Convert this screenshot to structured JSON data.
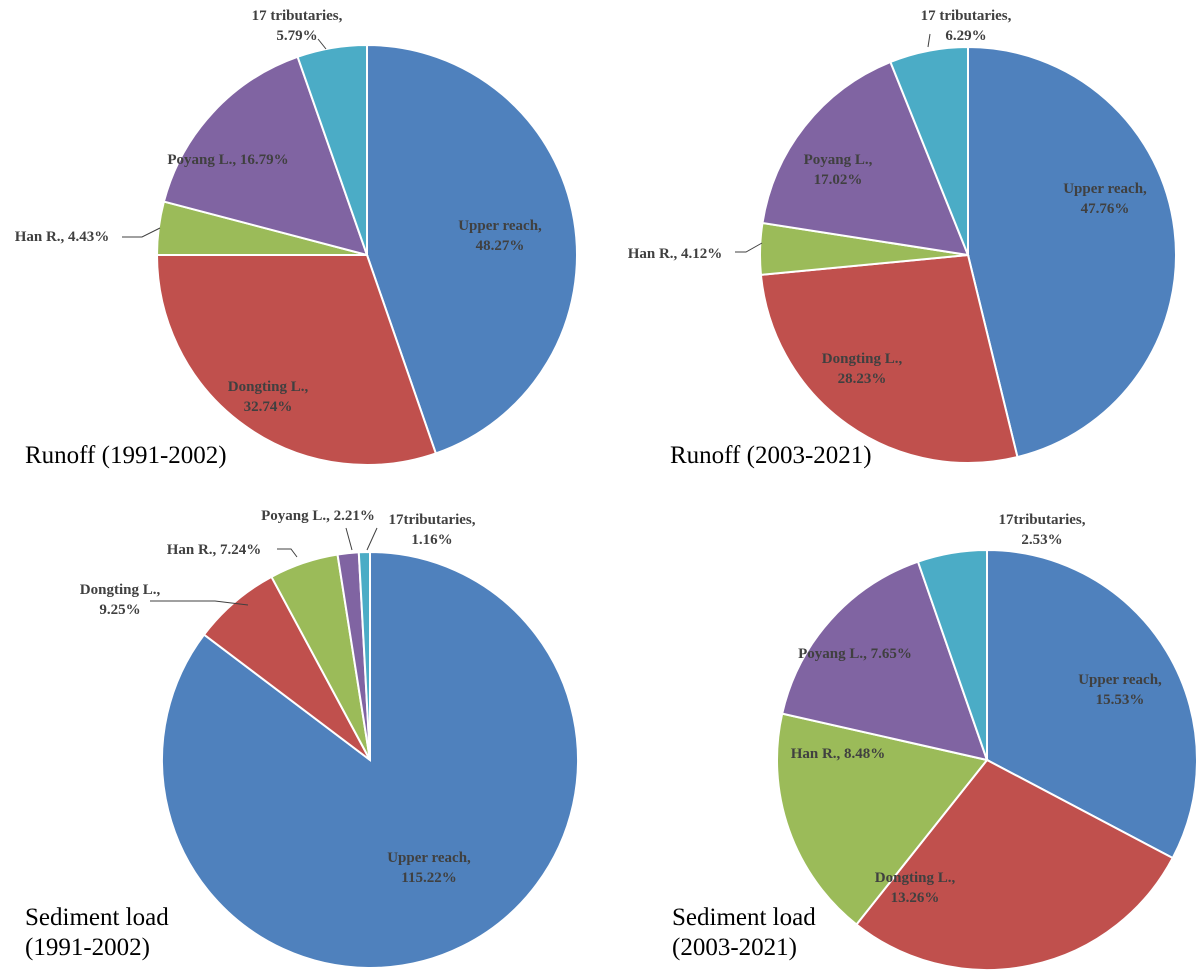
{
  "chart_data": [
    {
      "type": "pie",
      "title_lines": [
        "Runoff (1991-2002)"
      ],
      "slices": [
        {
          "label": [
            "Upper reach,",
            "48.27%"
          ],
          "value": 48.27,
          "color": "#4f81bd"
        },
        {
          "label": [
            "Dongting L.,",
            "32.74%"
          ],
          "value": 32.74,
          "color": "#c0504d"
        },
        {
          "label": [
            "Han R., 4.43%"
          ],
          "value": 4.43,
          "color": "#9bbb59"
        },
        {
          "label": [
            "Poyang L., 16.79%"
          ],
          "value": 16.79,
          "color": "#8064a2"
        },
        {
          "label": [
            "17 tributaries,",
            "5.79%"
          ],
          "value": 5.79,
          "color": "#4bacc6"
        }
      ]
    },
    {
      "type": "pie",
      "title_lines": [
        "Runoff (2003-2021)"
      ],
      "slices": [
        {
          "label": [
            "Upper reach,",
            "47.76%"
          ],
          "value": 47.76,
          "color": "#4f81bd"
        },
        {
          "label": [
            "Dongting L.,",
            "28.23%"
          ],
          "value": 28.23,
          "color": "#c0504d"
        },
        {
          "label": [
            "Han R., 4.12%"
          ],
          "value": 4.12,
          "color": "#9bbb59"
        },
        {
          "label": [
            "Poyang L.,",
            "17.02%"
          ],
          "value": 17.02,
          "color": "#8064a2"
        },
        {
          "label": [
            "17 tributaries,",
            "6.29%"
          ],
          "value": 6.29,
          "color": "#4bacc6"
        }
      ]
    },
    {
      "type": "pie",
      "title_lines": [
        "Sediment load",
        "(1991-2002)"
      ],
      "slices": [
        {
          "label": [
            "Upper reach,",
            "115.22%"
          ],
          "value": 115.22,
          "color": "#4f81bd"
        },
        {
          "label": [
            "Dongting L.,",
            "9.25%"
          ],
          "value": 9.25,
          "color": "#c0504d"
        },
        {
          "label": [
            "Han R., 7.24%"
          ],
          "value": 7.24,
          "color": "#9bbb59"
        },
        {
          "label": [
            "Poyang L., 2.21%"
          ],
          "value": 2.21,
          "color": "#8064a2"
        },
        {
          "label": [
            "17tributaries,",
            "1.16%"
          ],
          "value": 1.16,
          "color": "#4bacc6"
        }
      ]
    },
    {
      "type": "pie",
      "title_lines": [
        "Sediment load",
        "(2003-2021)"
      ],
      "slices": [
        {
          "label": [
            "Upper reach,",
            "15.53%"
          ],
          "value": 15.53,
          "color": "#4f81bd"
        },
        {
          "label": [
            "Dongting L.,",
            "13.26%"
          ],
          "value": 13.26,
          "color": "#c0504d"
        },
        {
          "label": [
            "Han R., 8.48%"
          ],
          "value": 8.48,
          "color": "#9bbb59"
        },
        {
          "label": [
            "Poyang L., 7.65%"
          ],
          "value": 7.65,
          "color": "#8064a2"
        },
        {
          "label": [
            "17tributaries,",
            "2.53%"
          ],
          "value": 2.53,
          "color": "#4bacc6"
        }
      ]
    }
  ]
}
